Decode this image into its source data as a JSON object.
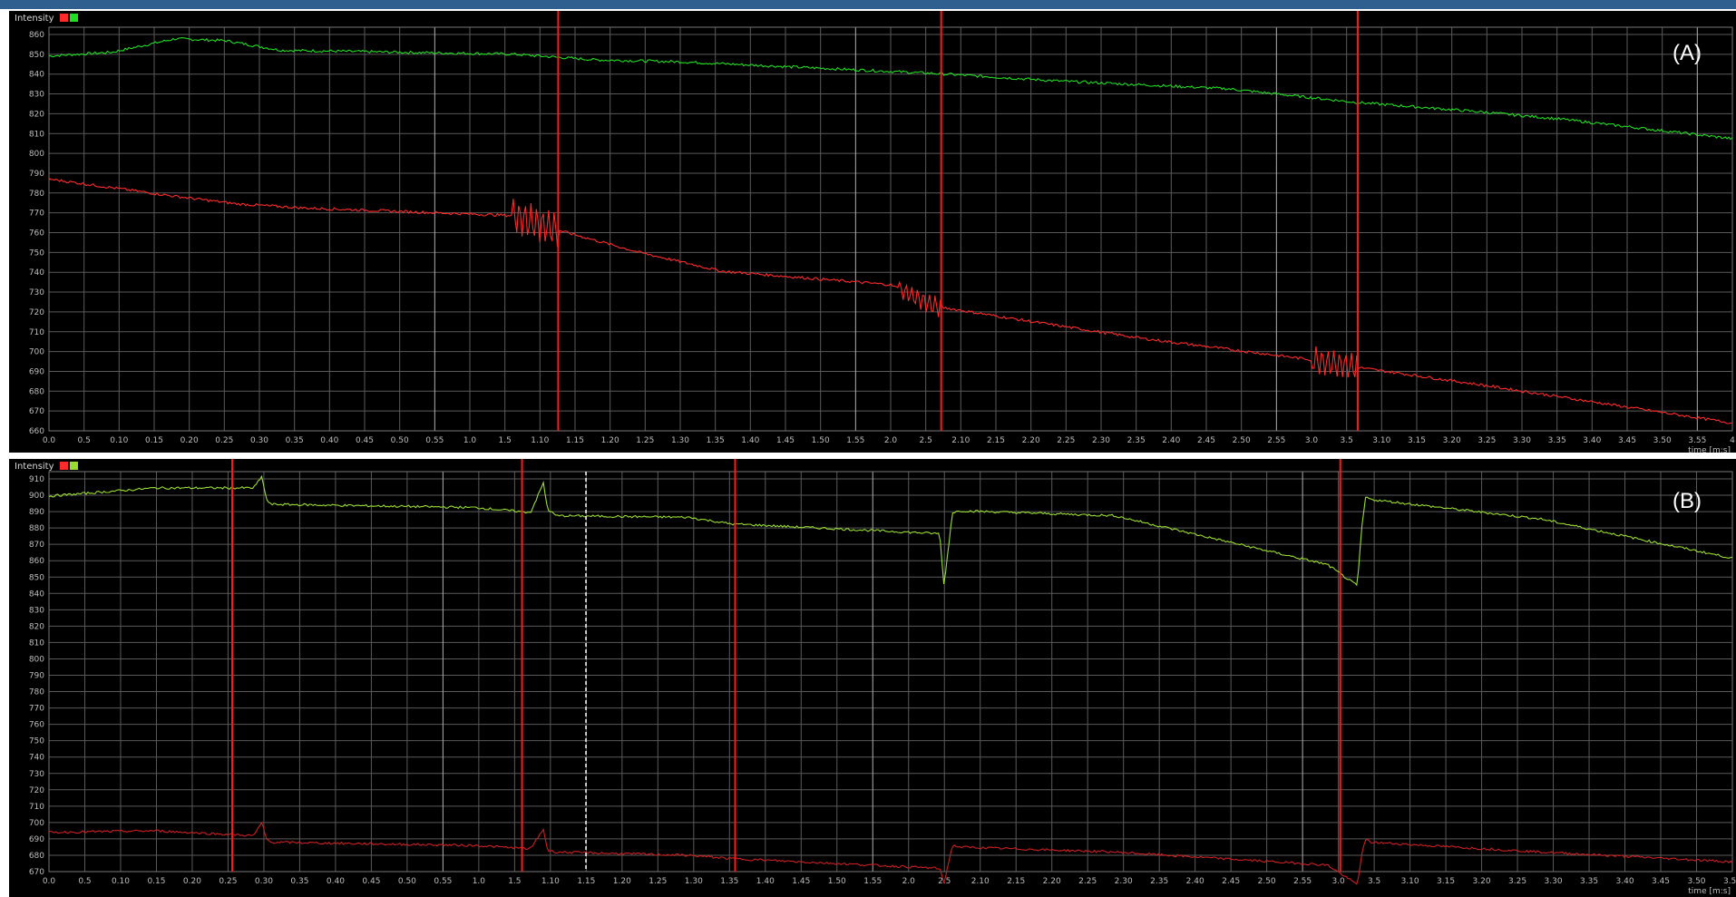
{
  "chart_data": [
    {
      "type": "line",
      "panel_label": "(A)",
      "ylabel": "Intensity",
      "xlabel": "time [m:s]",
      "legend_colors": [
        "#ff2a2a",
        "#22dd22"
      ],
      "grid": true,
      "ylim": [
        660,
        870
      ],
      "y_ticks": [
        "860",
        "850",
        "840",
        "830",
        "820",
        "810",
        "800",
        "790",
        "780",
        "770",
        "760",
        "750",
        "740",
        "730",
        "720",
        "710",
        "700",
        "690",
        "680",
        "670",
        "660"
      ],
      "x_ticks": [
        "0.0",
        "0.5",
        "0.10",
        "0.15",
        "0.20",
        "0.25",
        "0.30",
        "0.35",
        "0.40",
        "0.45",
        "0.50",
        "0.55",
        "1.0",
        "1.5",
        "1.10",
        "1.15",
        "1.20",
        "1.25",
        "1.30",
        "1.35",
        "1.40",
        "1.45",
        "1.50",
        "1.55",
        "2.0",
        "2.5",
        "2.10",
        "2.15",
        "2.20",
        "2.25",
        "2.30",
        "2.35",
        "2.40",
        "2.45",
        "2.50",
        "2.55",
        "3.0",
        "3.5",
        "3.10",
        "3.15",
        "3.20",
        "3.25",
        "3.30",
        "3.35",
        "3.40",
        "3.45",
        "3.50",
        "3.55",
        "4"
      ],
      "marker_lines_x": [
        1.21,
        2.12,
        3.11
      ],
      "series": [
        {
          "color": "#22dd22",
          "x": [
            0,
            0.15,
            0.3,
            0.42,
            0.55,
            1.1,
            1.3,
            1.5,
            2.1,
            2.4,
            2.8,
            3.1,
            3.4,
            3.6,
            4.0
          ],
          "values": [
            855,
            857,
            864,
            863,
            858,
            856,
            853,
            852,
            846,
            842,
            838,
            831,
            826,
            822,
            812
          ]
        },
        {
          "color": "#ff2a2a",
          "x": [
            0,
            0.3,
            0.45,
            0.6,
            1.1,
            1.2,
            1.4,
            1.6,
            2.0,
            2.1,
            2.3,
            2.6,
            3.0,
            3.11,
            3.4,
            4.0
          ],
          "values": [
            791,
            782,
            778,
            776,
            772,
            765,
            753,
            743,
            736,
            725,
            718,
            708,
            697,
            693,
            684,
            664
          ]
        }
      ],
      "oscillation_segments": [
        {
          "series": 1,
          "x_start": 1.1,
          "x_end": 1.21,
          "amplitude": 9
        },
        {
          "series": 1,
          "x_start": 2.02,
          "x_end": 2.12,
          "amplitude": 5
        },
        {
          "series": 1,
          "x_start": 3.0,
          "x_end": 3.11,
          "amplitude": 7
        }
      ]
    },
    {
      "type": "line",
      "panel_label": "(B)",
      "ylabel": "Intensity",
      "xlabel": "time [m:s]",
      "legend_colors": [
        "#ff2a2a",
        "#99dd33"
      ],
      "grid": true,
      "ylim": [
        670,
        915
      ],
      "y_ticks": [
        "910",
        "900",
        "890",
        "880",
        "870",
        "860",
        "850",
        "840",
        "830",
        "820",
        "810",
        "800",
        "790",
        "780",
        "770",
        "760",
        "750",
        "740",
        "730",
        "720",
        "710",
        "700",
        "690",
        "680",
        "670"
      ],
      "x_ticks": [
        "0.0",
        "0.5",
        "0.10",
        "0.15",
        "0.20",
        "0.25",
        "0.30",
        "0.35",
        "0.40",
        "0.45",
        "0.50",
        "0.55",
        "1.0",
        "1.5",
        "1.10",
        "1.15",
        "1.20",
        "1.25",
        "1.30",
        "1.35",
        "1.40",
        "1.45",
        "1.50",
        "1.55",
        "2.0",
        "2.5",
        "2.10",
        "2.15",
        "2.20",
        "2.25",
        "2.30",
        "2.35",
        "2.40",
        "2.45",
        "2.50",
        "2.55",
        "3.0",
        "3.5",
        "3.10",
        "3.15",
        "3.20",
        "3.25",
        "3.30",
        "3.35",
        "3.40",
        "3.45",
        "3.50",
        "3.55"
      ],
      "marker_lines_x": [
        0.43,
        1.11,
        1.61,
        3.03
      ],
      "dashed_line_x": 1.26,
      "series": [
        {
          "color": "#99dd33",
          "x": [
            0,
            0.25,
            0.48,
            0.5,
            0.51,
            0.52,
            1.0,
            1.13,
            1.16,
            1.17,
            1.19,
            1.5,
            1.6,
            2.09,
            2.1,
            2.12,
            2.14,
            2.5,
            3.0,
            3.07,
            3.08,
            3.09,
            3.1,
            3.5,
            3.95
          ],
          "values": [
            900,
            905,
            905,
            912,
            898,
            895,
            893,
            890,
            908,
            892,
            888,
            887,
            883,
            877,
            845,
            890,
            891,
            888,
            858,
            845,
            880,
            900,
            898,
            886,
            862
          ]
        },
        {
          "color": "#cc2020",
          "x": [
            0,
            0.25,
            0.48,
            0.5,
            0.51,
            0.52,
            1.0,
            1.13,
            1.16,
            1.17,
            1.19,
            1.5,
            1.6,
            2.09,
            2.1,
            2.12,
            2.14,
            2.5,
            3.0,
            3.07,
            3.08,
            3.09,
            3.1,
            3.5,
            3.95
          ],
          "values": [
            694,
            695,
            692,
            700,
            690,
            688,
            686,
            684,
            696,
            683,
            682,
            680,
            678,
            672,
            663,
            686,
            685,
            682,
            674,
            662,
            680,
            690,
            688,
            682,
            676
          ]
        }
      ]
    }
  ]
}
